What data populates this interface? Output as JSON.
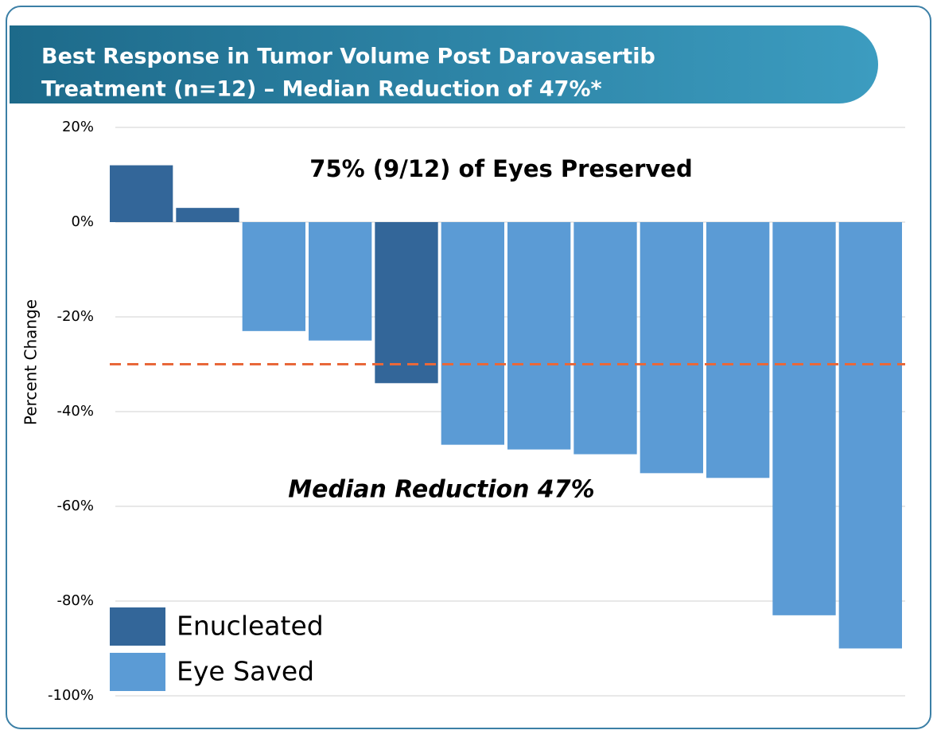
{
  "chart_data": {
    "type": "bar",
    "title": [
      "Best Response in Tumor Volume Post Darovasertib",
      "Treatment (n=12) – Median Reduction of 47%*"
    ],
    "y_label": "Percent Change",
    "annotations": [
      "75% (9/12) of Eyes Preserved",
      "Median Reduction 47%"
    ],
    "categories": [
      null,
      null,
      null,
      null,
      null,
      null,
      null,
      null,
      null,
      null,
      null,
      null
    ],
    "series": [
      {
        "name": "Enucleated",
        "color": "#336699",
        "values": [
          12,
          3,
          null,
          null,
          -34,
          null,
          null,
          null,
          null,
          null,
          null,
          null
        ]
      },
      {
        "name": "Eye Saved",
        "color": "#5b9bd5",
        "values": [
          null,
          null,
          -23,
          -25,
          null,
          -47,
          -48,
          -49,
          -53,
          -54,
          -83,
          -90
        ]
      }
    ],
    "reference_line": {
      "value": -30,
      "color": "#e8683a"
    },
    "ylim": [
      -100,
      20
    ],
    "yticks": [
      {
        "value": 20,
        "label": "20%"
      },
      {
        "value": 0,
        "label": "0%"
      },
      {
        "value": -20,
        "label": "-20%"
      },
      {
        "value": -40,
        "label": "-40%"
      },
      {
        "value": -60,
        "label": "-60%"
      },
      {
        "value": -80,
        "label": "-80%"
      },
      {
        "value": -100,
        "label": "-100%"
      }
    ],
    "grid": true,
    "legend": "bottom-left"
  }
}
